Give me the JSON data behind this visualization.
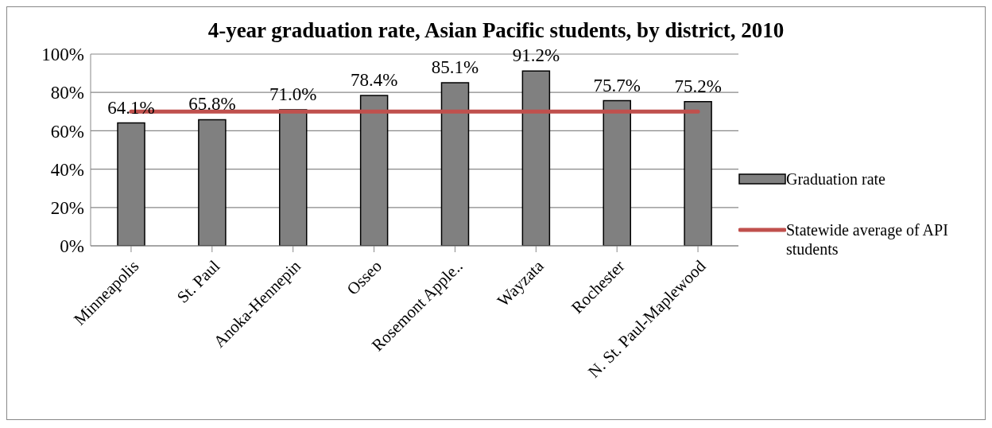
{
  "chart_data": {
    "type": "bar",
    "title": "4-year graduation rate, Asian Pacific students, by district, 2010",
    "categories": [
      "Minneapolis",
      "St. Paul",
      "Anoka-Hennepin",
      "Osseo",
      "Rosemont Apple..",
      "Wayzata",
      "Rochester",
      "N. St. Paul-Maplewood"
    ],
    "series": [
      {
        "name": "Graduation rate",
        "color": "#808080",
        "values": [
          64.1,
          65.8,
          71.0,
          78.4,
          85.1,
          91.2,
          75.7,
          75.2
        ],
        "value_labels": [
          "64.1%",
          "65.8%",
          "71.0%",
          "78.4%",
          "85.1%",
          "91.2%",
          "75.7%",
          "75.2%"
        ]
      },
      {
        "name": "Statewide average of API students",
        "type": "line",
        "color": "#c0504d",
        "values": [
          70,
          70,
          70,
          70,
          70,
          70,
          70,
          70
        ]
      }
    ],
    "ylim": [
      0,
      100
    ],
    "yticks": [
      {
        "value": 0,
        "label": "0%"
      },
      {
        "value": 20,
        "label": "20%"
      },
      {
        "value": 40,
        "label": "40%"
      },
      {
        "value": 60,
        "label": "60%"
      },
      {
        "value": 80,
        "label": "80%"
      },
      {
        "value": 100,
        "label": "100%"
      }
    ],
    "grid": "y",
    "legend": "right",
    "marker": "none"
  }
}
